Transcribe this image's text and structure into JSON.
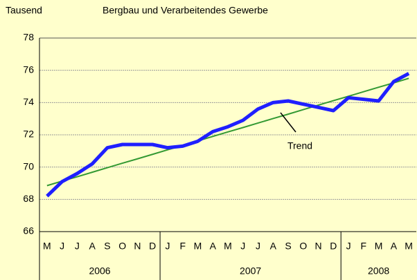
{
  "chart_data": {
    "type": "line",
    "subtitle": "Bergbau und Verarbeitendes Gewerbe",
    "y_label": "Tausend",
    "categories": [
      "M",
      "J",
      "J",
      "A",
      "S",
      "O",
      "N",
      "D",
      "J",
      "F",
      "M",
      "A",
      "M",
      "J",
      "J",
      "A",
      "S",
      "O",
      "N",
      "D",
      "J",
      "F",
      "M",
      "A",
      "M"
    ],
    "groups": [
      {
        "label": "2006",
        "count": 8
      },
      {
        "label": "2007",
        "count": 12
      },
      {
        "label": "2008",
        "count": 5
      }
    ],
    "series": [
      {
        "color": "#1f1fff",
        "values": [
          68.2,
          69.1,
          69.6,
          70.2,
          71.2,
          71.4,
          71.4,
          71.4,
          71.2,
          71.3,
          71.6,
          72.2,
          72.5,
          72.9,
          73.6,
          74.0,
          74.1,
          73.9,
          73.7,
          73.5,
          74.3,
          74.2,
          74.1,
          75.3,
          75.8
        ]
      },
      {
        "name": "Trend",
        "color": "#339933",
        "values": [
          68.85,
          69.13,
          69.4,
          69.68,
          69.96,
          70.24,
          70.51,
          70.79,
          71.07,
          71.34,
          71.62,
          71.9,
          72.18,
          72.45,
          72.73,
          73.01,
          73.28,
          73.56,
          73.84,
          74.12,
          74.39,
          74.67,
          74.95,
          75.22,
          75.5
        ]
      }
    ],
    "ylim": [
      66,
      78
    ],
    "yticks": [
      66,
      68,
      70,
      72,
      74,
      76,
      78
    ],
    "grid": true
  }
}
